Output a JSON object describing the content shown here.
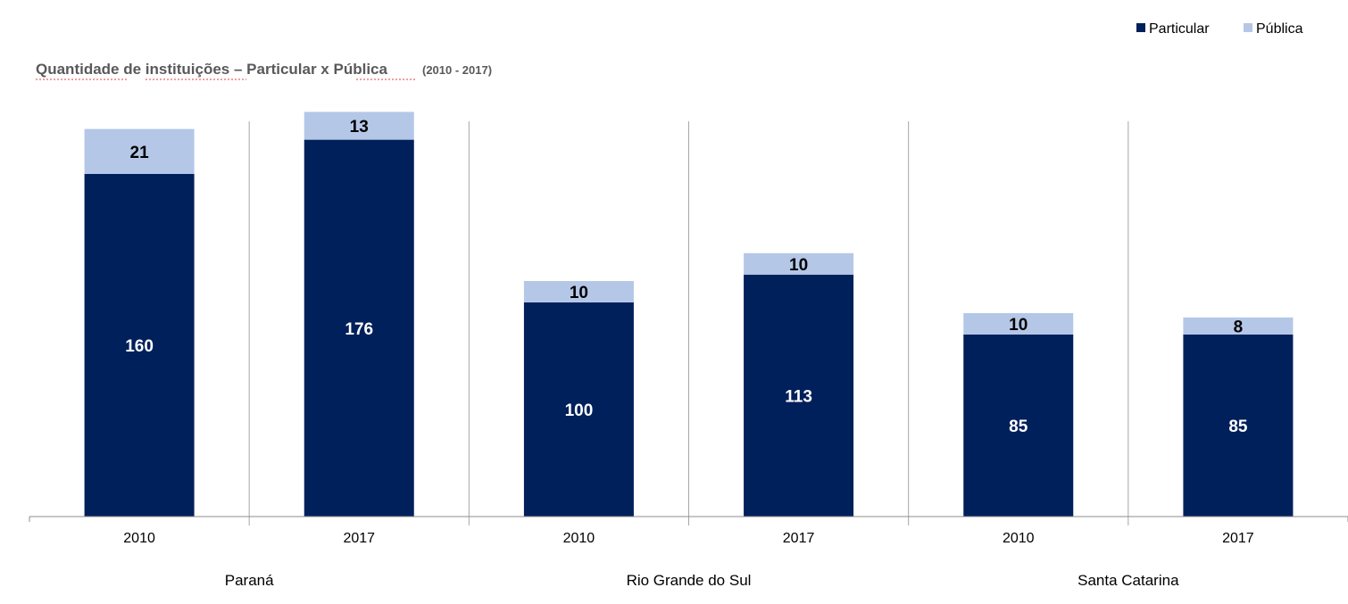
{
  "chart_data": {
    "type": "bar",
    "stacked": true,
    "title": "Quantidade de instituições – Particular x Pública",
    "subtitle": "(2010 - 2017)",
    "groups": [
      "Paraná",
      "Paraná",
      "Rio Grande do Sul",
      "Rio Grande do Sul",
      "Santa Catarina",
      "Santa Catarina"
    ],
    "group_labels": [
      "Paraná",
      "Rio Grande do Sul",
      "Santa Catarina"
    ],
    "categories": [
      "2010",
      "2017",
      "2010",
      "2017",
      "2010",
      "2017"
    ],
    "series": [
      {
        "name": "Particular",
        "color": "#00205b",
        "values": [
          160,
          176,
          100,
          113,
          85,
          85
        ]
      },
      {
        "name": "Pública",
        "color": "#b4c7e7",
        "values": [
          21,
          13,
          10,
          10,
          10,
          8
        ]
      }
    ],
    "legend_position": "top-right",
    "grid": false,
    "ylim": [
      0,
      200
    ]
  }
}
